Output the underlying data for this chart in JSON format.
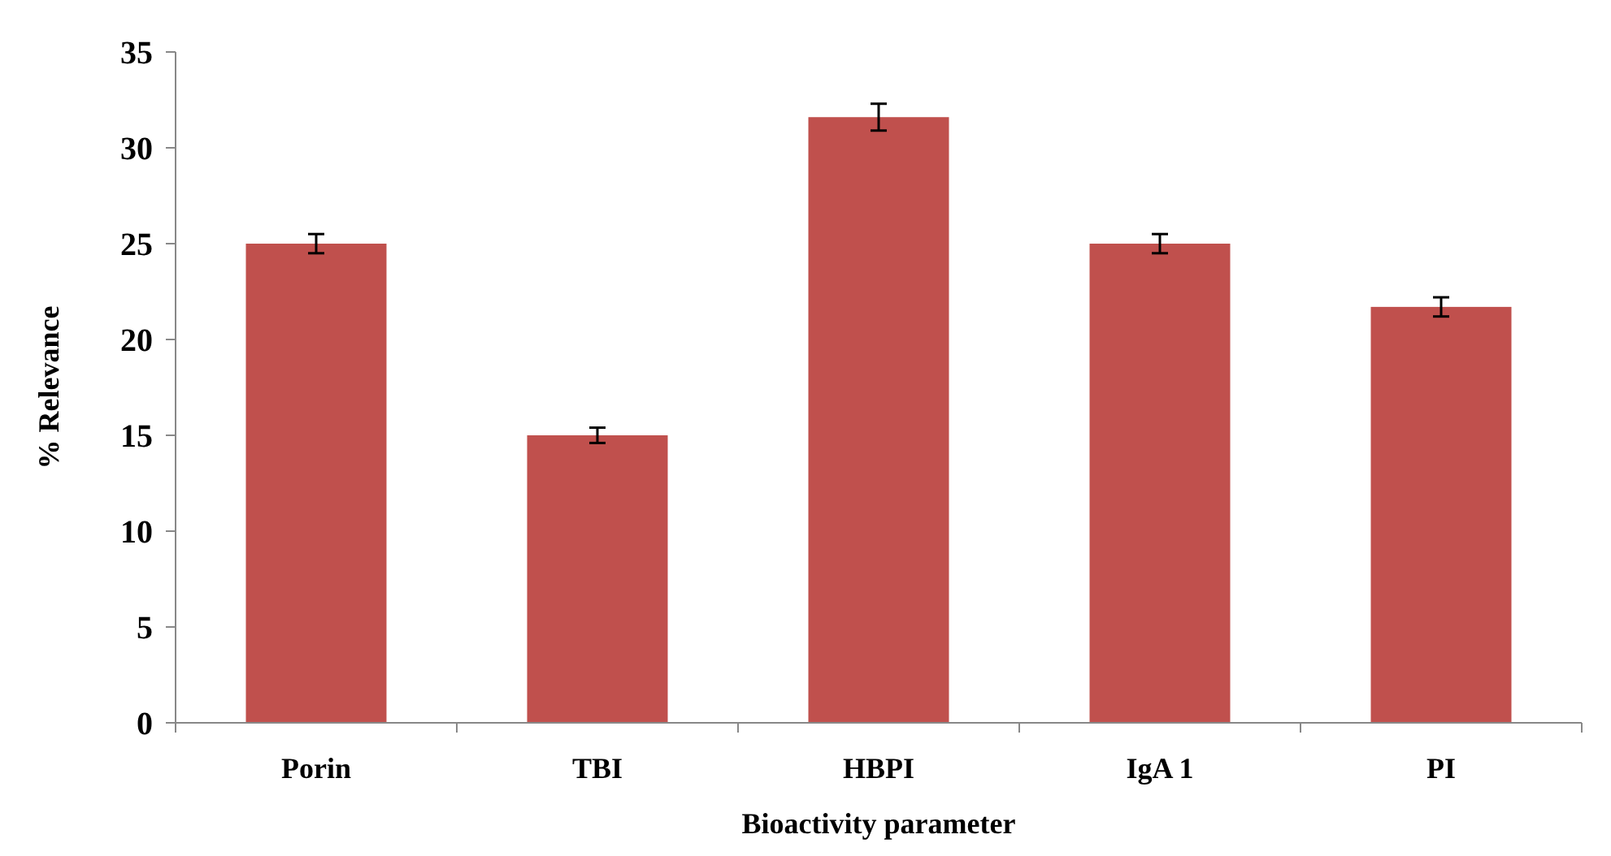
{
  "chart_data": {
    "type": "bar",
    "xlabel": "Bioactivity parameter",
    "ylabel": "% Relevance",
    "categories": [
      "Porin",
      "TBI",
      "HBPI",
      "IgA 1",
      "PI"
    ],
    "values": [
      25,
      15,
      31.6,
      25,
      21.7
    ],
    "errors": [
      0.5,
      0.4,
      0.7,
      0.5,
      0.5
    ],
    "color": "#c0504d",
    "ylim": [
      0,
      35
    ],
    "yticks": [
      0,
      5,
      10,
      15,
      20,
      25,
      30,
      35
    ],
    "grid": false
  }
}
